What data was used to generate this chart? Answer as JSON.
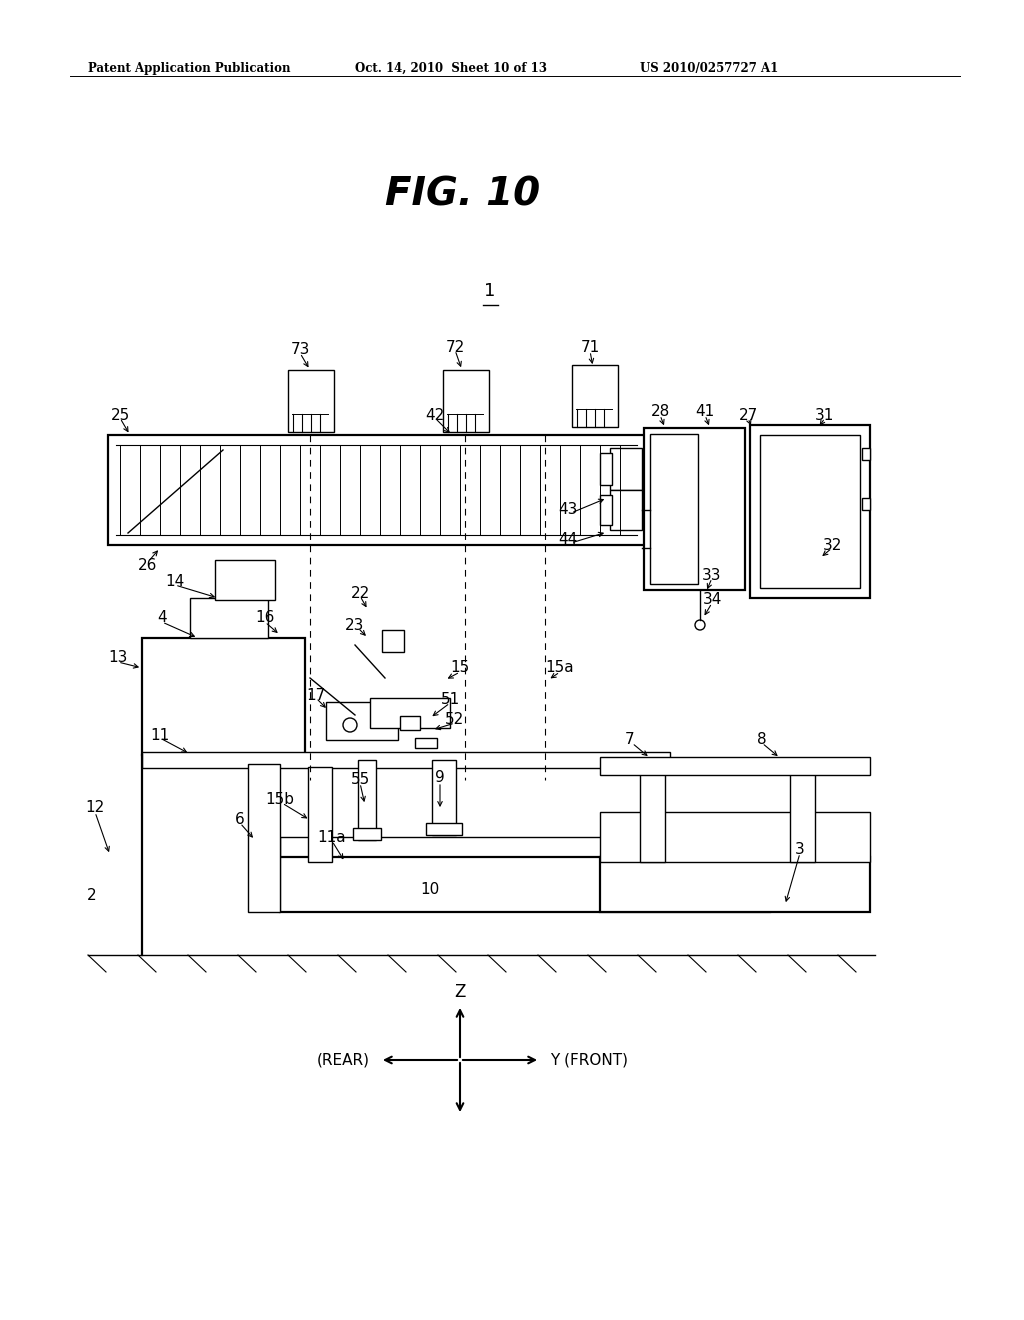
{
  "bg_color": "#ffffff",
  "header_left": "Patent Application Publication",
  "header_mid": "Oct. 14, 2010  Sheet 10 of 13",
  "header_right": "US 2010/0257727 A1",
  "fig_title": "FIG. 10",
  "axis_label_z": "Z",
  "axis_label_y_front": "Y (FRONT)",
  "axis_label_rear": "(REAR)"
}
